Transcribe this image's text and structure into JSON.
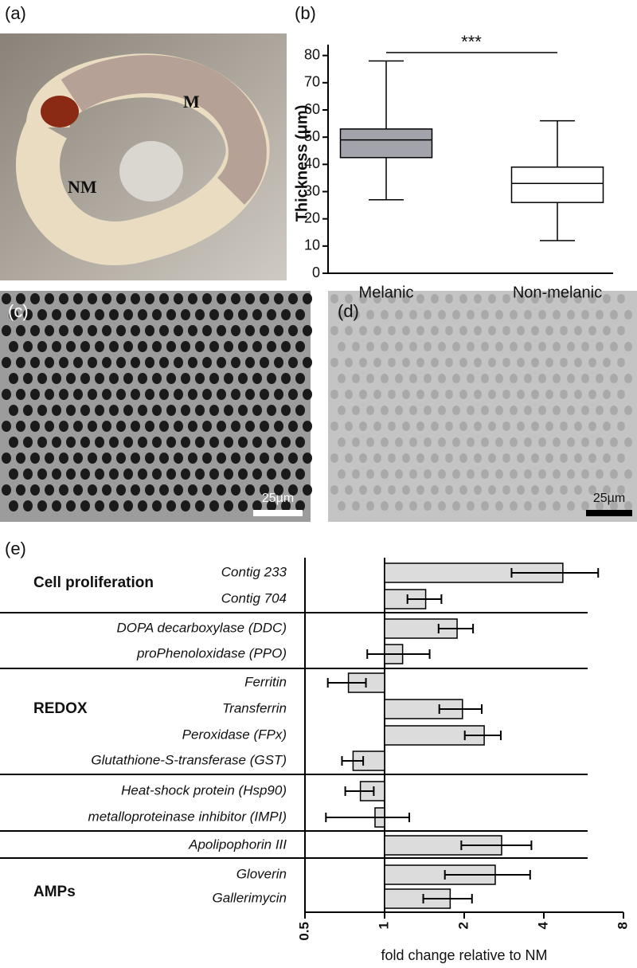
{
  "panels": {
    "a": {
      "label": "(a)",
      "annotations": [
        "NM",
        "M"
      ]
    },
    "b": {
      "label": "(b)"
    },
    "c": {
      "label": "(c)",
      "scale_bar": "25µm"
    },
    "d": {
      "label": "(d)",
      "scale_bar": "25µm"
    },
    "e": {
      "label": "(e)"
    }
  },
  "chart_data": [
    {
      "type": "box",
      "categories": [
        "Melanic",
        "Non-melanic"
      ],
      "ylabel": "Thickness (μm)",
      "ylim": [
        0,
        84
      ],
      "yticks": [
        0,
        10,
        20,
        30,
        40,
        50,
        60,
        70,
        80
      ],
      "min": [
        27,
        12
      ],
      "q1": [
        42.5,
        26
      ],
      "median": [
        49,
        33
      ],
      "q3": [
        53,
        39
      ],
      "max": [
        78,
        56
      ],
      "colors": [
        "#a3a3ab",
        "#ffffff"
      ],
      "annotation": "***"
    },
    {
      "type": "barh",
      "categories": [
        "Contig 233",
        "Contig 704",
        "DOPA decarboxylase (DDC)",
        "proPhenoloxidase (PPO)",
        "Ferritin",
        "Transferrin",
        "Peroxidase (FPx)",
        "Glutathione-S-transferase (GST)",
        "Heat-shock protein (Hsp90)",
        "metalloproteinase inhibitor (IMPI)",
        "Apolipophorin III",
        "Gloverin",
        "Gallerimycin"
      ],
      "values": [
        4.72,
        1.43,
        1.88,
        1.17,
        0.73,
        1.97,
        2.38,
        0.76,
        0.81,
        0.92,
        2.77,
        2.62,
        1.77
      ],
      "errors": [
        1.7,
        0.21,
        0.28,
        0.31,
        0.12,
        0.36,
        0.37,
        0.07,
        0.1,
        0.32,
        0.82,
        0.93,
        0.37
      ],
      "color": "#dcdcdc",
      "xscale": "log2",
      "base": 1,
      "xlim": [
        0.5,
        8
      ],
      "xticks": [
        0.5,
        1,
        2,
        4,
        8
      ],
      "xlabel": "fold change relative to NM",
      "group_labels": [
        "Cell proliferation",
        "REDOX",
        "AMPs"
      ]
    }
  ]
}
